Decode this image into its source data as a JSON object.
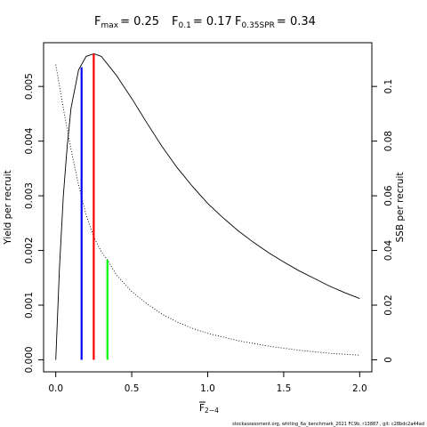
{
  "chart_data": {
    "type": "line",
    "title": {
      "fmax_label": "F",
      "fmax_sub": "max",
      "fmax_value": "= 0.25",
      "f01_label": "F",
      "f01_sub": "0.1",
      "f01_value": "= 0.17",
      "f035_label": "F",
      "f035_sub": "0.35SPR",
      "f035_value": "= 0.34"
    },
    "xlabel": {
      "main": "F",
      "sub": "2−4"
    },
    "ylabel_left": "Yield per recruit",
    "ylabel_right": "SSB per recruit",
    "xlim": [
      -0.08,
      2.08
    ],
    "ylim_left": [
      -0.00022,
      0.0058
    ],
    "ylim_right": [
      -0.0044,
      0.116
    ],
    "x_ticks": [
      0,
      0.5,
      1,
      1.5,
      2
    ],
    "x_tick_labels": [
      "0.0",
      "0.5",
      "1.0",
      "1.5",
      "2.0"
    ],
    "y_left_ticks": [
      0,
      0.001,
      0.002,
      0.003,
      0.004,
      0.005
    ],
    "y_left_tick_labels": [
      "0.000",
      "0.001",
      "0.002",
      "0.003",
      "0.004",
      "0.005"
    ],
    "y_right_ticks": [
      0,
      0.02,
      0.04,
      0.06,
      0.08,
      0.1
    ],
    "y_right_tick_labels": [
      "0",
      "0.02",
      "0.04",
      "0.06",
      "0.08",
      "0.1"
    ],
    "series": [
      {
        "axis": "left",
        "style": "solid",
        "color": "#000000",
        "x": [
          0,
          0.025,
          0.05,
          0.075,
          0.1,
          0.15,
          0.2,
          0.25,
          0.3,
          0.4,
          0.5,
          0.6,
          0.7,
          0.8,
          0.9,
          1.0,
          1.1,
          1.2,
          1.3,
          1.4,
          1.5,
          1.6,
          1.7,
          1.8,
          1.9,
          2.0
        ],
        "y": [
          0,
          0.0017,
          0.003,
          0.0039,
          0.0046,
          0.0053,
          0.00555,
          0.0056,
          0.00555,
          0.0052,
          0.00478,
          0.00433,
          0.0039,
          0.00351,
          0.00317,
          0.00286,
          0.0026,
          0.00236,
          0.00215,
          0.00196,
          0.00179,
          0.00163,
          0.00149,
          0.00135,
          0.00123,
          0.00112
        ]
      },
      {
        "axis": "right",
        "style": "dotted",
        "color": "#000000",
        "x": [
          0,
          0.05,
          0.1,
          0.15,
          0.2,
          0.25,
          0.3,
          0.34,
          0.4,
          0.5,
          0.6,
          0.7,
          0.8,
          0.9,
          1.0,
          1.2,
          1.4,
          1.6,
          1.8,
          2.0
        ],
        "y": [
          0.108,
          0.092,
          0.077,
          0.064,
          0.053,
          0.045,
          0.0395,
          0.0365,
          0.031,
          0.025,
          0.0205,
          0.0167,
          0.0138,
          0.0115,
          0.0097,
          0.007,
          0.005,
          0.0035,
          0.0024,
          0.0017
        ]
      }
    ],
    "reference_lines": [
      {
        "name": "F0.1",
        "color": "#0000ff",
        "x": 0.17,
        "axis": "left",
        "y_top": 0.00535
      },
      {
        "name": "Fmax",
        "color": "#ff0000",
        "x": 0.25,
        "axis": "left",
        "y_top": 0.0056
      },
      {
        "name": "F0.35SPR",
        "color": "#00ff00",
        "x": 0.34,
        "axis": "right",
        "y_top": 0.0365
      }
    ],
    "footer": "stockassessment.org, whiting_6a_benchmark_2021 FC9b, r13887 , git: c28bdc2a44ad"
  }
}
